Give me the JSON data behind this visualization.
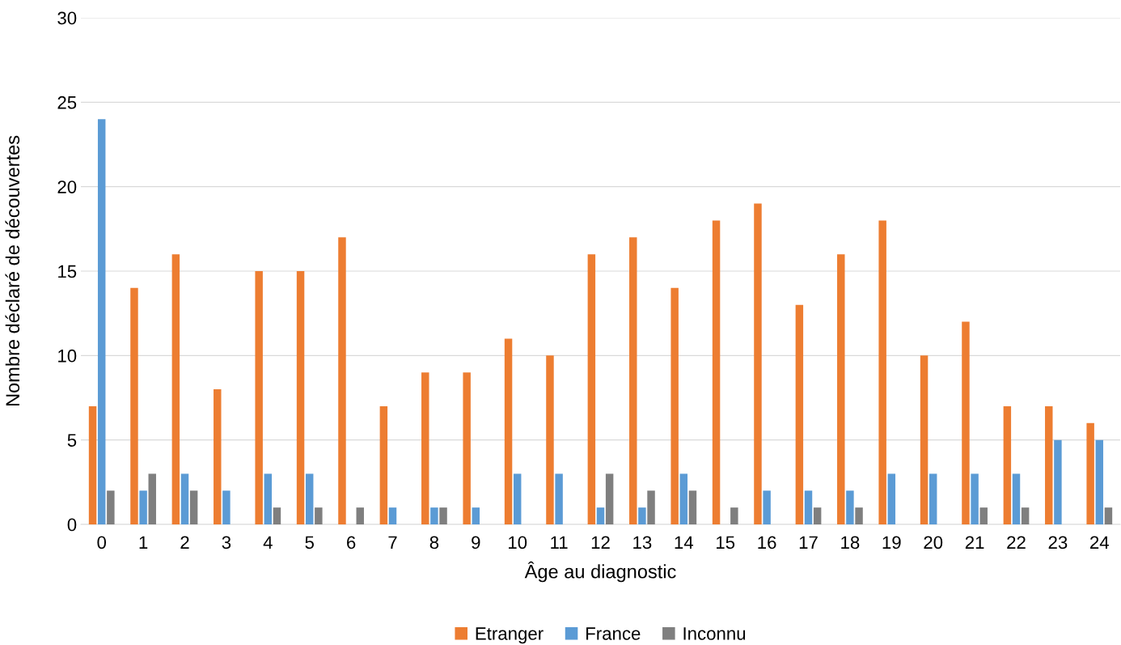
{
  "chart_data": {
    "type": "bar",
    "xlabel": "Âge au diagnostic",
    "ylabel": "Nombre déclaré de découvertes",
    "categories": [
      "0",
      "1",
      "2",
      "3",
      "4",
      "5",
      "6",
      "7",
      "8",
      "9",
      "10",
      "11",
      "12",
      "13",
      "14",
      "15",
      "16",
      "17",
      "18",
      "19",
      "20",
      "21",
      "22",
      "23",
      "24"
    ],
    "series": [
      {
        "name": "Etranger",
        "color": "#ed7d31",
        "values": [
          7,
          14,
          16,
          8,
          15,
          15,
          17,
          7,
          9,
          9,
          11,
          10,
          16,
          17,
          14,
          18,
          19,
          13,
          16,
          18,
          10,
          12,
          7,
          7,
          6
        ]
      },
      {
        "name": "France",
        "color": "#5b9bd5",
        "values": [
          24,
          2,
          3,
          2,
          3,
          3,
          null,
          1,
          1,
          1,
          3,
          3,
          1,
          1,
          3,
          null,
          2,
          2,
          2,
          3,
          3,
          3,
          3,
          5,
          5
        ]
      },
      {
        "name": "Inconnu",
        "color": "#7f7f7f",
        "values": [
          2,
          3,
          2,
          null,
          1,
          1,
          1,
          null,
          1,
          null,
          null,
          null,
          3,
          2,
          2,
          1,
          null,
          1,
          1,
          null,
          null,
          1,
          1,
          null,
          1
        ]
      }
    ],
    "ylim": [
      0,
      30
    ],
    "yticks": [
      0,
      5,
      10,
      15,
      20,
      25,
      30
    ],
    "grid": "y",
    "legend": "bottom"
  }
}
